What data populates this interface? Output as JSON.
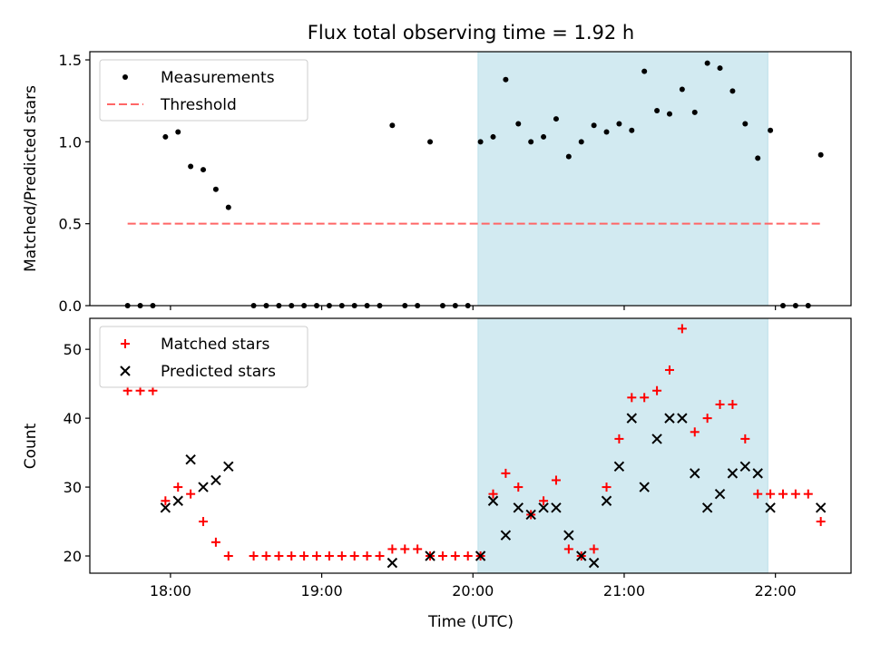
{
  "chart_data": [
    {
      "type": "scatter",
      "title": "Flux total observing time = 1.92 h",
      "ylabel": "Matched/Predicted stars",
      "xlabel": "",
      "x_unit": "time (UTC)",
      "xlim": [
        "17:28",
        "22:30"
      ],
      "ylim": [
        0,
        1.55
      ],
      "yticks": [
        "0.0",
        "0.5",
        "1.0",
        "1.5"
      ],
      "shaded_span": {
        "from": "20:02",
        "to": "21:57",
        "color": "#add8e6"
      },
      "legend_location": "upper-left",
      "series": [
        {
          "name": "Measurements",
          "marker": "dot",
          "color": "#000000",
          "points": [
            [
              "17:43",
              0
            ],
            [
              "17:48",
              0
            ],
            [
              "17:53",
              0
            ],
            [
              "17:58",
              1.03
            ],
            [
              "18:03",
              1.06
            ],
            [
              "18:08",
              0.85
            ],
            [
              "18:13",
              0.83
            ],
            [
              "18:18",
              0.71
            ],
            [
              "18:23",
              0.6
            ],
            [
              "18:33",
              0
            ],
            [
              "18:38",
              0
            ],
            [
              "18:43",
              0
            ],
            [
              "18:48",
              0
            ],
            [
              "18:53",
              0
            ],
            [
              "18:58",
              0
            ],
            [
              "19:03",
              0
            ],
            [
              "19:08",
              0
            ],
            [
              "19:13",
              0
            ],
            [
              "19:18",
              0
            ],
            [
              "19:23",
              0
            ],
            [
              "19:28",
              1.1
            ],
            [
              "19:33",
              0
            ],
            [
              "19:38",
              0
            ],
            [
              "19:43",
              1.0
            ],
            [
              "19:48",
              0
            ],
            [
              "19:53",
              0
            ],
            [
              "19:58",
              0
            ],
            [
              "20:03",
              1.0
            ],
            [
              "20:08",
              1.03
            ],
            [
              "20:13",
              1.38
            ],
            [
              "20:18",
              1.11
            ],
            [
              "20:23",
              1.0
            ],
            [
              "20:28",
              1.03
            ],
            [
              "20:33",
              1.14
            ],
            [
              "20:38",
              0.91
            ],
            [
              "20:43",
              1.0
            ],
            [
              "20:48",
              1.1
            ],
            [
              "20:53",
              1.06
            ],
            [
              "20:58",
              1.11
            ],
            [
              "21:03",
              1.07
            ],
            [
              "21:08",
              1.43
            ],
            [
              "21:13",
              1.19
            ],
            [
              "21:18",
              1.17
            ],
            [
              "21:23",
              1.32
            ],
            [
              "21:28",
              1.18
            ],
            [
              "21:33",
              1.48
            ],
            [
              "21:38",
              1.45
            ],
            [
              "21:43",
              1.31
            ],
            [
              "21:48",
              1.11
            ],
            [
              "21:53",
              0.9
            ],
            [
              "21:58",
              1.07
            ],
            [
              "22:03",
              0
            ],
            [
              "22:08",
              0
            ],
            [
              "22:13",
              0
            ],
            [
              "22:18",
              0.92
            ]
          ]
        },
        {
          "name": "Threshold",
          "marker": "dashed-line",
          "color": "#ff6666",
          "points": [
            [
              "17:43",
              0.5
            ],
            [
              "22:18",
              0.5
            ]
          ]
        }
      ]
    },
    {
      "type": "scatter",
      "title": "",
      "xlabel": "Time (UTC)",
      "ylabel": "Count",
      "xlim": [
        "17:28",
        "22:30"
      ],
      "ylim": [
        17.5,
        54.5
      ],
      "xticks": [
        "18:00",
        "19:00",
        "20:00",
        "21:00",
        "22:00"
      ],
      "yticks": [
        "20",
        "30",
        "40",
        "50"
      ],
      "shaded_span": {
        "from": "20:02",
        "to": "21:57",
        "color": "#add8e6"
      },
      "legend_location": "upper-left",
      "series": [
        {
          "name": "Matched stars",
          "marker": "plus",
          "color": "#ff0000",
          "points": [
            [
              "17:43",
              44
            ],
            [
              "17:48",
              44
            ],
            [
              "17:53",
              44
            ],
            [
              "17:58",
              28
            ],
            [
              "18:03",
              30
            ],
            [
              "18:08",
              29
            ],
            [
              "18:13",
              25
            ],
            [
              "18:18",
              22
            ],
            [
              "18:23",
              20
            ],
            [
              "18:33",
              20
            ],
            [
              "18:38",
              20
            ],
            [
              "18:43",
              20
            ],
            [
              "18:48",
              20
            ],
            [
              "18:53",
              20
            ],
            [
              "18:58",
              20
            ],
            [
              "19:03",
              20
            ],
            [
              "19:08",
              20
            ],
            [
              "19:13",
              20
            ],
            [
              "19:18",
              20
            ],
            [
              "19:23",
              20
            ],
            [
              "19:28",
              21
            ],
            [
              "19:33",
              21
            ],
            [
              "19:38",
              21
            ],
            [
              "19:43",
              20
            ],
            [
              "19:48",
              20
            ],
            [
              "19:53",
              20
            ],
            [
              "19:58",
              20
            ],
            [
              "20:03",
              20
            ],
            [
              "20:08",
              29
            ],
            [
              "20:13",
              32
            ],
            [
              "20:18",
              30
            ],
            [
              "20:23",
              26
            ],
            [
              "20:28",
              28
            ],
            [
              "20:33",
              31
            ],
            [
              "20:38",
              21
            ],
            [
              "20:43",
              20
            ],
            [
              "20:48",
              21
            ],
            [
              "20:53",
              30
            ],
            [
              "20:58",
              37
            ],
            [
              "21:03",
              43
            ],
            [
              "21:08",
              43
            ],
            [
              "21:13",
              44
            ],
            [
              "21:18",
              47
            ],
            [
              "21:23",
              53
            ],
            [
              "21:28",
              38
            ],
            [
              "21:33",
              40
            ],
            [
              "21:38",
              42
            ],
            [
              "21:43",
              42
            ],
            [
              "21:48",
              37
            ],
            [
              "21:53",
              29
            ],
            [
              "21:58",
              29
            ],
            [
              "22:03",
              29
            ],
            [
              "22:08",
              29
            ],
            [
              "22:13",
              29
            ],
            [
              "22:18",
              25
            ]
          ]
        },
        {
          "name": "Predicted stars",
          "marker": "x",
          "color": "#000000",
          "points": [
            [
              "17:58",
              27
            ],
            [
              "18:03",
              28
            ],
            [
              "18:08",
              34
            ],
            [
              "18:13",
              30
            ],
            [
              "18:18",
              31
            ],
            [
              "18:23",
              33
            ],
            [
              "19:28",
              19
            ],
            [
              "19:43",
              20
            ],
            [
              "20:03",
              20
            ],
            [
              "20:08",
              28
            ],
            [
              "20:13",
              23
            ],
            [
              "20:18",
              27
            ],
            [
              "20:23",
              26
            ],
            [
              "20:28",
              27
            ],
            [
              "20:33",
              27
            ],
            [
              "20:38",
              23
            ],
            [
              "20:43",
              20
            ],
            [
              "20:48",
              19
            ],
            [
              "20:53",
              28
            ],
            [
              "20:58",
              33
            ],
            [
              "21:03",
              40
            ],
            [
              "21:08",
              30
            ],
            [
              "21:13",
              37
            ],
            [
              "21:18",
              40
            ],
            [
              "21:23",
              40
            ],
            [
              "21:28",
              32
            ],
            [
              "21:33",
              27
            ],
            [
              "21:38",
              29
            ],
            [
              "21:43",
              32
            ],
            [
              "21:48",
              33
            ],
            [
              "21:53",
              32
            ],
            [
              "21:58",
              27
            ],
            [
              "22:18",
              27
            ]
          ]
        }
      ]
    }
  ]
}
